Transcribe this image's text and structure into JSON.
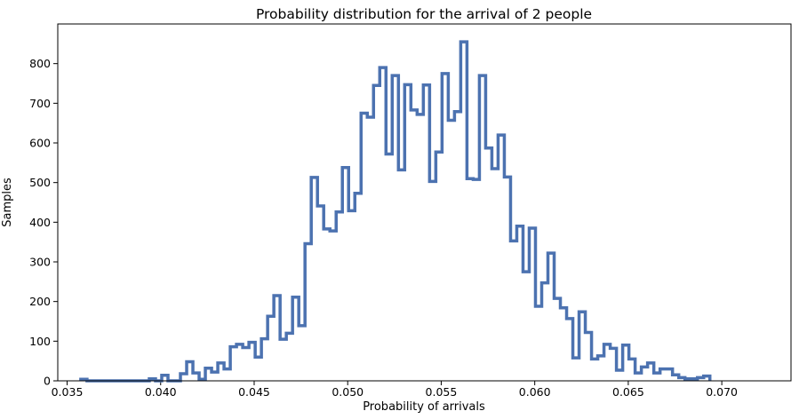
{
  "chart_data": {
    "type": "histogram",
    "title": "Probability distribution for the arrival of 2 people",
    "xlabel": "Probability of arrivals",
    "ylabel": "Samples",
    "xlim": [
      0.0345,
      0.0737
    ],
    "ylim": [
      0,
      900
    ],
    "xticks": [
      0.035,
      0.04,
      0.045,
      0.05,
      0.055,
      0.06,
      0.065,
      0.07
    ],
    "xtick_labels": [
      "0.035",
      "0.040",
      "0.045",
      "0.050",
      "0.055",
      "0.060",
      "0.065",
      "0.070"
    ],
    "yticks": [
      0,
      100,
      200,
      300,
      400,
      500,
      600,
      700,
      800
    ],
    "ytick_labels": [
      "0",
      "100",
      "200",
      "300",
      "400",
      "500",
      "600",
      "700",
      "800"
    ],
    "grid": false,
    "histtype": "step",
    "color": "#4c72b0",
    "bin_start": 0.03573,
    "bin_width": 0.000333,
    "counts": [
      4,
      0,
      0,
      0,
      0,
      0,
      0,
      0,
      0,
      0,
      0,
      5,
      0,
      14,
      0,
      0,
      18,
      48,
      20,
      4,
      32,
      22,
      45,
      30,
      86,
      92,
      84,
      97,
      60,
      106,
      163,
      215,
      105,
      120,
      211,
      139,
      346,
      513,
      441,
      383,
      378,
      426,
      538,
      429,
      473,
      675,
      665,
      745,
      790,
      572,
      770,
      532,
      747,
      683,
      672,
      746,
      503,
      577,
      775,
      657,
      679,
      855,
      510,
      508,
      770,
      587,
      535,
      620,
      514,
      353,
      390,
      275,
      385,
      188,
      247,
      322,
      208,
      184,
      157,
      58,
      174,
      122,
      55,
      63,
      92,
      82,
      27,
      90,
      55,
      20,
      35,
      45,
      20,
      30,
      30,
      15,
      8,
      5,
      5,
      8,
      12
    ]
  }
}
